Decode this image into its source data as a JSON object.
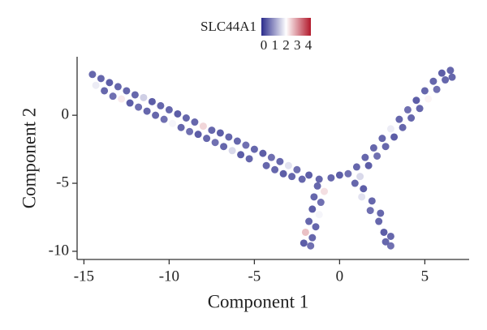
{
  "chart_data": {
    "type": "scatter",
    "xlabel": "Component 1",
    "ylabel": "Component 2",
    "xlim": [
      -15.4,
      7.6
    ],
    "ylim": [
      -10.6,
      4.3
    ],
    "xticks": [
      -15,
      -10,
      -5,
      0,
      5
    ],
    "yticks": [
      -10,
      -5,
      0
    ],
    "colorbar": {
      "label": "SLC44A1",
      "lim": [
        0,
        4
      ],
      "ticks": [
        0,
        1,
        2,
        3,
        4
      ],
      "colors": [
        "#2b2c8c",
        "#ffffff",
        "#b2182b"
      ]
    },
    "x": [
      -14.5,
      -14.3,
      -14,
      -13.8,
      -13.5,
      -13.3,
      -13,
      -12.8,
      -12.5,
      -12.3,
      -12,
      -11.8,
      -11.5,
      -11.3,
      -11,
      -10.8,
      -10.5,
      -10.3,
      -10,
      -9.8,
      -9.5,
      -9.3,
      -9,
      -8.8,
      -8.5,
      -8.3,
      -8,
      -7.8,
      -7.5,
      -7.3,
      -7,
      -6.8,
      -6.5,
      -6.3,
      -6,
      -5.8,
      -5.5,
      -5.3,
      -5,
      -4.8,
      -4.5,
      -4.3,
      -4,
      -3.8,
      -3.5,
      -3.3,
      -3,
      -2.8,
      -2.5,
      -2.2,
      -1.8,
      -1.2,
      -0.5,
      0,
      0.5,
      1,
      1.2,
      1.5,
      1.7,
      2,
      2.2,
      2.5,
      2.7,
      3,
      3.2,
      3.5,
      3.7,
      4,
      4.2,
      4.5,
      4.7,
      5,
      5.2,
      5.5,
      5.7,
      6,
      6.2,
      6.5,
      6.6,
      -1.3,
      -0.9,
      -1.5,
      -1.1,
      -1.6,
      -1.2,
      -1.8,
      -1.4,
      -2,
      -1.6,
      -2.1,
      -1.7,
      0.9,
      1.4,
      1.3,
      1.9,
      1.8,
      2.4,
      2.3,
      2.9,
      2.6,
      3,
      2.7,
      3
    ],
    "y": [
      3,
      2.2,
      2.7,
      1.8,
      2.4,
      1.4,
      2.1,
      1.2,
      1.8,
      0.9,
      1.5,
      0.6,
      1.3,
      0.3,
      1,
      0,
      0.7,
      -0.3,
      0.4,
      -0.6,
      0.1,
      -0.9,
      -0.2,
      -1.2,
      -0.5,
      -1.4,
      -0.8,
      -1.7,
      -1.1,
      -2,
      -1.3,
      -2.3,
      -1.6,
      -2.6,
      -1.9,
      -2.9,
      -2.2,
      -3.2,
      -2.5,
      -3.4,
      -2.8,
      -3.7,
      -3.1,
      -4,
      -3.4,
      -4.3,
      -3.7,
      -4.5,
      -4,
      -4.7,
      -4.4,
      -4.7,
      -4.6,
      -4.4,
      -4.3,
      -3.8,
      -4.5,
      -3.1,
      -3.7,
      -2.4,
      -3,
      -1.7,
      -2.3,
      -1,
      -1.6,
      -0.3,
      -0.9,
      0.4,
      -0.2,
      1.1,
      0.5,
      1.8,
      1.2,
      2.5,
      1.9,
      3.1,
      2.6,
      3.3,
      2.8,
      -5.2,
      -5.6,
      -6,
      -6.4,
      -6.9,
      -7.3,
      -7.8,
      -8.2,
      -8.6,
      -9,
      -9.4,
      -9.6,
      -5,
      -5.4,
      -6,
      -6.3,
      -7,
      -7.2,
      -7.8,
      -8,
      -8.6,
      -8.9,
      -9.3,
      -9.6
    ],
    "c": [
      0.4,
      1.8,
      0.4,
      0.4,
      0.3,
      0.5,
      0.4,
      2.2,
      0.4,
      0.3,
      0.4,
      0.5,
      1.5,
      0.4,
      0.3,
      0.4,
      0.4,
      0.5,
      0.4,
      1.9,
      0.3,
      0.4,
      0.4,
      0.5,
      0.4,
      0.3,
      2.4,
      0.4,
      0.4,
      0.5,
      0.3,
      0.4,
      0.4,
      1.6,
      0.4,
      0.3,
      0.5,
      0.4,
      0.4,
      2.0,
      0.3,
      0.4,
      0.5,
      0.4,
      0.4,
      0.3,
      1.7,
      0.4,
      0.5,
      0.4,
      0.3,
      0.4,
      0.4,
      0.3,
      0.5,
      0.4,
      1.6,
      0.4,
      0.3,
      0.4,
      0.5,
      0.4,
      0.4,
      1.8,
      0.3,
      0.4,
      0.4,
      0.5,
      0.4,
      0.3,
      0.4,
      0.4,
      2.1,
      0.4,
      0.5,
      0.3,
      0.4,
      0.4,
      0.4,
      0.4,
      2.3,
      0.4,
      0.5,
      0.3,
      1.9,
      0.4,
      0.4,
      2.6,
      0.4,
      0.3,
      0.5,
      0.4,
      0.3,
      1.7,
      0.4,
      0.5,
      0.4,
      0.4,
      2.0,
      0.3,
      0.4,
      0.4,
      0.5
    ]
  }
}
